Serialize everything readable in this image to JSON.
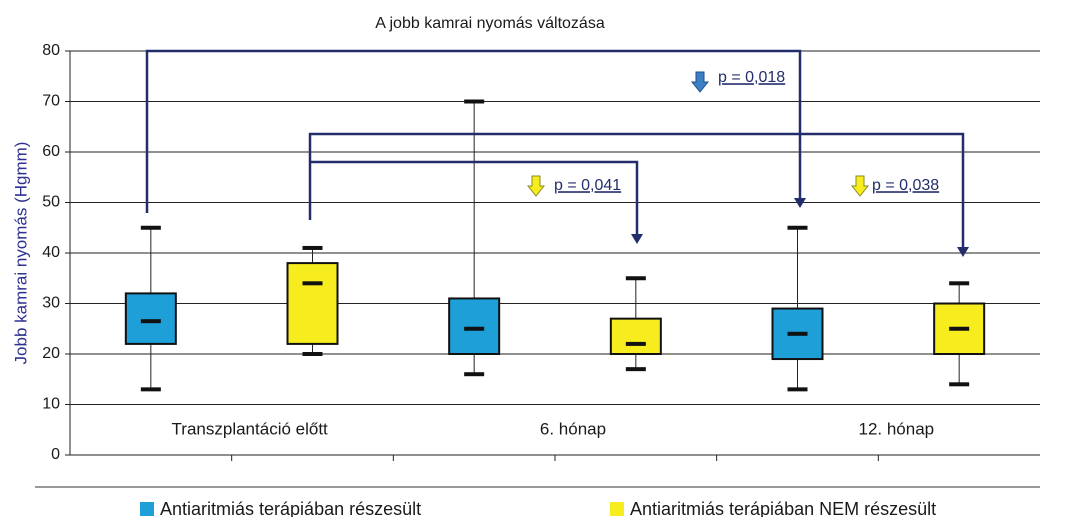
{
  "chart_data": {
    "type": "box",
    "title": "A jobb kamrai nyomás változása",
    "y_label": "Jobb kamrai nyomás (Hgmm)",
    "categories": [
      "Transzplantáció előtt",
      "6. hónap",
      "12. hónap"
    ],
    "series": [
      {
        "name": "Antiaritmiás terápiában részesült",
        "color": "#1e9fd8",
        "values": [
          [
            13,
            22,
            26.5,
            32,
            45
          ],
          [
            16,
            20,
            25,
            31,
            70
          ],
          [
            13,
            19,
            24,
            29,
            45
          ]
        ]
      },
      {
        "name": "Antiaritmiás terápiában NEM részesült",
        "color": "#f7ec1d",
        "values": [
          [
            20,
            22,
            34,
            38,
            41
          ],
          [
            17,
            20,
            22,
            27,
            35
          ],
          [
            14,
            20,
            25,
            30,
            34
          ]
        ]
      }
    ],
    "ylim": [
      0,
      80
    ],
    "yticks": [
      0,
      10,
      20,
      30,
      40,
      50,
      60,
      70,
      80
    ],
    "grid": true,
    "annotations": [
      "p = 0,018",
      "p = 0,041",
      "p = 0,038"
    ]
  }
}
